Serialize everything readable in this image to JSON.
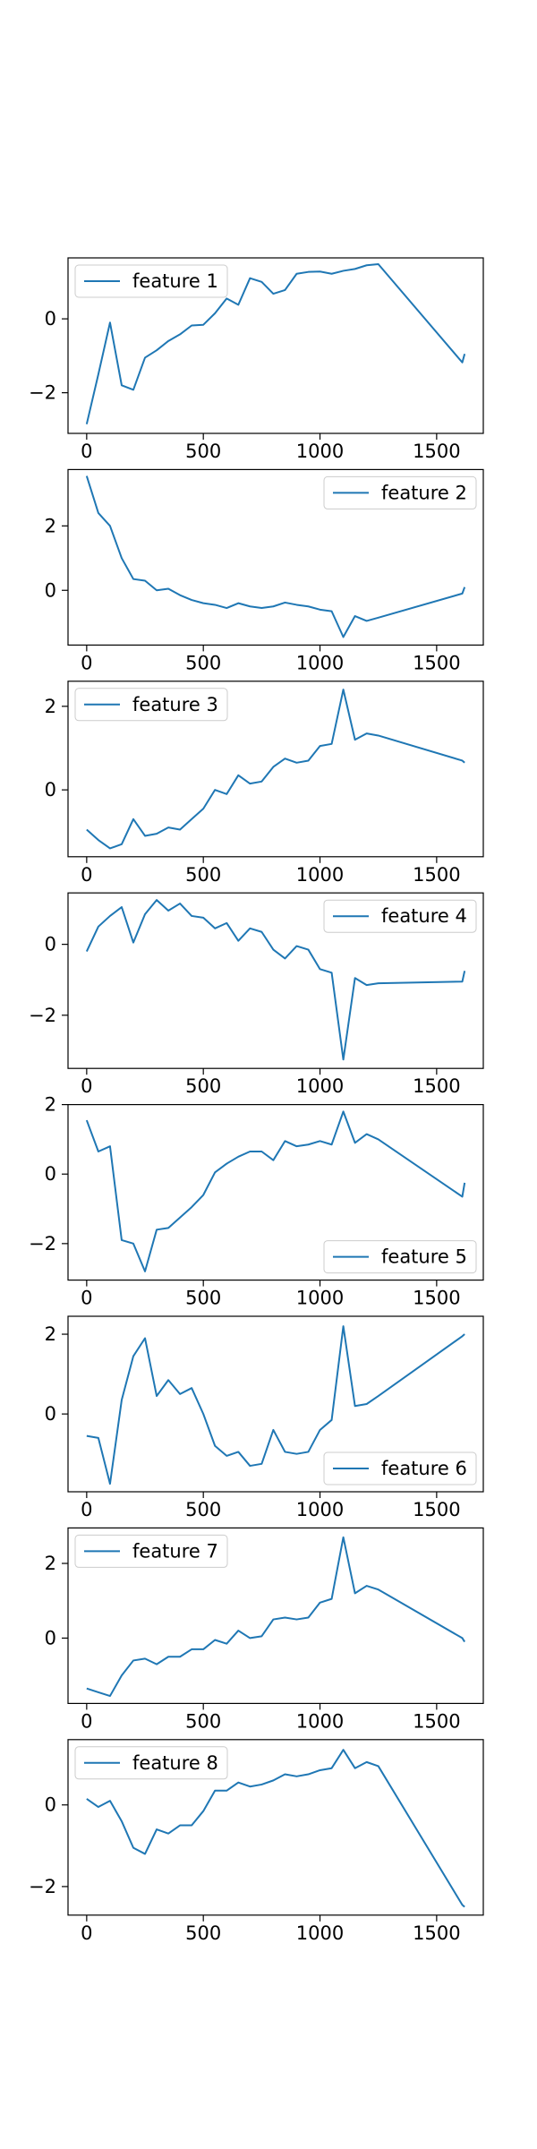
{
  "figure": {
    "background": "#ffffff",
    "line_color": "#1f77b4",
    "axes_color": "#000000",
    "legend_border_color": "#cccccc"
  },
  "chart_data": [
    {
      "type": "line",
      "series": [
        {
          "name": "feature 1",
          "x": [
            0,
            50,
            100,
            150,
            200,
            250,
            300,
            350,
            400,
            450,
            500,
            550,
            600,
            650,
            700,
            750,
            800,
            850,
            900,
            950,
            1000,
            1050,
            1100,
            1150,
            1200,
            1250,
            1610,
            1620
          ],
          "values": [
            -2.85,
            -1.5,
            -0.1,
            -1.8,
            -1.92,
            -1.05,
            -0.85,
            -0.6,
            -0.42,
            -0.18,
            -0.16,
            0.15,
            0.55,
            0.38,
            1.1,
            1.0,
            0.68,
            0.78,
            1.22,
            1.27,
            1.28,
            1.22,
            1.3,
            1.35,
            1.45,
            1.48,
            -1.18,
            -0.95
          ]
        }
      ],
      "legend_loc": "upper left",
      "xlim": [
        -80,
        1700
      ],
      "ylim": [
        -3.1,
        1.65
      ],
      "xticks": [
        0,
        500,
        1000,
        1500
      ],
      "yticks": [
        -2,
        0
      ],
      "xtick_labels": [
        "0",
        "500",
        "1000",
        "1500"
      ],
      "ytick_labels": [
        "−2",
        "0"
      ]
    },
    {
      "type": "line",
      "series": [
        {
          "name": "feature 2",
          "x": [
            0,
            50,
            100,
            150,
            200,
            250,
            300,
            350,
            400,
            450,
            500,
            550,
            600,
            650,
            700,
            750,
            800,
            850,
            900,
            950,
            1000,
            1050,
            1100,
            1150,
            1200,
            1250,
            1610,
            1620
          ],
          "values": [
            3.55,
            2.4,
            2.0,
            1.0,
            0.35,
            0.3,
            0.0,
            0.05,
            -0.15,
            -0.3,
            -0.4,
            -0.45,
            -0.55,
            -0.4,
            -0.5,
            -0.55,
            -0.5,
            -0.38,
            -0.45,
            -0.5,
            -0.6,
            -0.65,
            -1.45,
            -0.8,
            -0.95,
            -0.85,
            -0.1,
            0.1
          ]
        }
      ],
      "legend_loc": "upper right",
      "xlim": [
        -80,
        1700
      ],
      "ylim": [
        -1.7,
        3.75
      ],
      "xticks": [
        0,
        500,
        1000,
        1500
      ],
      "yticks": [
        0,
        2
      ],
      "xtick_labels": [
        "0",
        "500",
        "1000",
        "1500"
      ],
      "ytick_labels": [
        "0",
        "2"
      ]
    },
    {
      "type": "line",
      "series": [
        {
          "name": "feature 3",
          "x": [
            0,
            50,
            100,
            150,
            200,
            250,
            300,
            350,
            400,
            450,
            500,
            550,
            600,
            650,
            700,
            750,
            800,
            850,
            900,
            950,
            1000,
            1050,
            1100,
            1150,
            1200,
            1250,
            1610,
            1620
          ],
          "values": [
            -0.95,
            -1.2,
            -1.4,
            -1.3,
            -0.7,
            -1.1,
            -1.05,
            -0.9,
            -0.95,
            -0.7,
            -0.45,
            0.0,
            -0.1,
            0.35,
            0.15,
            0.2,
            0.55,
            0.75,
            0.65,
            0.7,
            1.05,
            1.1,
            2.4,
            1.2,
            1.35,
            1.3,
            0.7,
            0.65
          ]
        }
      ],
      "legend_loc": "upper left",
      "xlim": [
        -80,
        1700
      ],
      "ylim": [
        -1.6,
        2.6
      ],
      "xticks": [
        0,
        500,
        1000,
        1500
      ],
      "yticks": [
        0,
        2
      ],
      "xtick_labels": [
        "0",
        "500",
        "1000",
        "1500"
      ],
      "ytick_labels": [
        "0",
        "2"
      ]
    },
    {
      "type": "line",
      "series": [
        {
          "name": "feature 4",
          "x": [
            0,
            50,
            100,
            150,
            200,
            250,
            300,
            350,
            400,
            450,
            500,
            550,
            600,
            650,
            700,
            750,
            800,
            850,
            900,
            950,
            1000,
            1050,
            1100,
            1150,
            1200,
            1250,
            1610,
            1620
          ],
          "values": [
            -0.2,
            0.5,
            0.8,
            1.05,
            0.05,
            0.85,
            1.25,
            0.95,
            1.15,
            0.8,
            0.75,
            0.45,
            0.6,
            0.1,
            0.45,
            0.35,
            -0.15,
            -0.4,
            -0.05,
            -0.15,
            -0.7,
            -0.8,
            -3.25,
            -0.95,
            -1.15,
            -1.1,
            -1.05,
            -0.75
          ]
        }
      ],
      "legend_loc": "upper right",
      "xlim": [
        -80,
        1700
      ],
      "ylim": [
        -3.5,
        1.45
      ],
      "xticks": [
        0,
        500,
        1000,
        1500
      ],
      "yticks": [
        -2,
        0
      ],
      "xtick_labels": [
        "0",
        "500",
        "1000",
        "1500"
      ],
      "ytick_labels": [
        "−2",
        "0"
      ]
    },
    {
      "type": "line",
      "series": [
        {
          "name": "feature 5",
          "x": [
            0,
            50,
            100,
            150,
            200,
            250,
            300,
            350,
            400,
            450,
            500,
            550,
            600,
            650,
            700,
            750,
            800,
            850,
            900,
            950,
            1000,
            1050,
            1100,
            1150,
            1200,
            1250,
            1610,
            1620
          ],
          "values": [
            1.55,
            0.65,
            0.8,
            -1.9,
            -2.0,
            -2.8,
            -1.6,
            -1.55,
            -1.25,
            -0.95,
            -0.6,
            0.05,
            0.3,
            0.5,
            0.65,
            0.65,
            0.4,
            0.95,
            0.8,
            0.85,
            0.95,
            0.85,
            1.8,
            0.9,
            1.15,
            1.0,
            -0.65,
            -0.25
          ]
        }
      ],
      "legend_loc": "lower right",
      "xlim": [
        -80,
        1700
      ],
      "ylim": [
        -3.05,
        2.0
      ],
      "xticks": [
        0,
        500,
        1000,
        1500
      ],
      "yticks": [
        -2,
        0,
        2
      ],
      "xtick_labels": [
        "0",
        "500",
        "1000",
        "1500"
      ],
      "ytick_labels": [
        "−2",
        "0",
        "2"
      ]
    },
    {
      "type": "line",
      "series": [
        {
          "name": "feature 6",
          "x": [
            0,
            50,
            100,
            150,
            200,
            250,
            300,
            350,
            400,
            450,
            500,
            550,
            600,
            650,
            700,
            750,
            800,
            850,
            900,
            950,
            1000,
            1050,
            1100,
            1150,
            1200,
            1250,
            1610,
            1620
          ],
          "values": [
            -0.55,
            -0.6,
            -1.75,
            0.35,
            1.45,
            1.9,
            0.45,
            0.85,
            0.5,
            0.65,
            0.0,
            -0.8,
            -1.05,
            -0.95,
            -1.3,
            -1.25,
            -0.4,
            -0.95,
            -1.0,
            -0.95,
            -0.4,
            -0.15,
            2.2,
            0.2,
            0.25,
            0.45,
            1.95,
            2.0
          ]
        }
      ],
      "legend_loc": "lower right",
      "xlim": [
        -80,
        1700
      ],
      "ylim": [
        -1.95,
        2.45
      ],
      "xticks": [
        0,
        500,
        1000,
        1500
      ],
      "yticks": [
        0,
        2
      ],
      "xtick_labels": [
        "0",
        "500",
        "1000",
        "1500"
      ],
      "ytick_labels": [
        "0",
        "2"
      ]
    },
    {
      "type": "line",
      "series": [
        {
          "name": "feature 7",
          "x": [
            0,
            50,
            100,
            150,
            200,
            250,
            300,
            350,
            400,
            450,
            500,
            550,
            600,
            650,
            700,
            750,
            800,
            850,
            900,
            950,
            1000,
            1050,
            1100,
            1150,
            1200,
            1250,
            1610,
            1620
          ],
          "values": [
            -1.35,
            -1.45,
            -1.55,
            -1.0,
            -0.6,
            -0.55,
            -0.7,
            -0.5,
            -0.5,
            -0.3,
            -0.3,
            -0.05,
            -0.15,
            0.2,
            0.0,
            0.05,
            0.5,
            0.55,
            0.5,
            0.55,
            0.95,
            1.05,
            2.7,
            1.2,
            1.4,
            1.3,
            0.0,
            -0.1
          ]
        }
      ],
      "legend_loc": "upper left",
      "xlim": [
        -80,
        1700
      ],
      "ylim": [
        -1.75,
        2.95
      ],
      "xticks": [
        0,
        500,
        1000,
        1500
      ],
      "yticks": [
        0,
        2
      ],
      "xtick_labels": [
        "0",
        "500",
        "1000",
        "1500"
      ],
      "ytick_labels": [
        "0",
        "2"
      ]
    },
    {
      "type": "line",
      "series": [
        {
          "name": "feature 8",
          "x": [
            0,
            50,
            100,
            150,
            200,
            250,
            300,
            350,
            400,
            450,
            500,
            550,
            600,
            650,
            700,
            750,
            800,
            850,
            900,
            950,
            1000,
            1050,
            1100,
            1150,
            1200,
            1250,
            1610,
            1620
          ],
          "values": [
            0.15,
            -0.05,
            0.1,
            -0.4,
            -1.05,
            -1.2,
            -0.6,
            -0.7,
            -0.5,
            -0.5,
            -0.15,
            0.35,
            0.35,
            0.55,
            0.45,
            0.5,
            0.6,
            0.75,
            0.7,
            0.75,
            0.85,
            0.9,
            1.35,
            0.9,
            1.05,
            0.95,
            -2.45,
            -2.5
          ]
        }
      ],
      "legend_loc": "upper left",
      "xlim": [
        -80,
        1700
      ],
      "ylim": [
        -2.7,
        1.6
      ],
      "xticks": [
        0,
        500,
        1000,
        1500
      ],
      "yticks": [
        -2,
        0
      ],
      "xtick_labels": [
        "0",
        "500",
        "1000",
        "1500"
      ],
      "ytick_labels": [
        "−2",
        "0"
      ]
    }
  ]
}
